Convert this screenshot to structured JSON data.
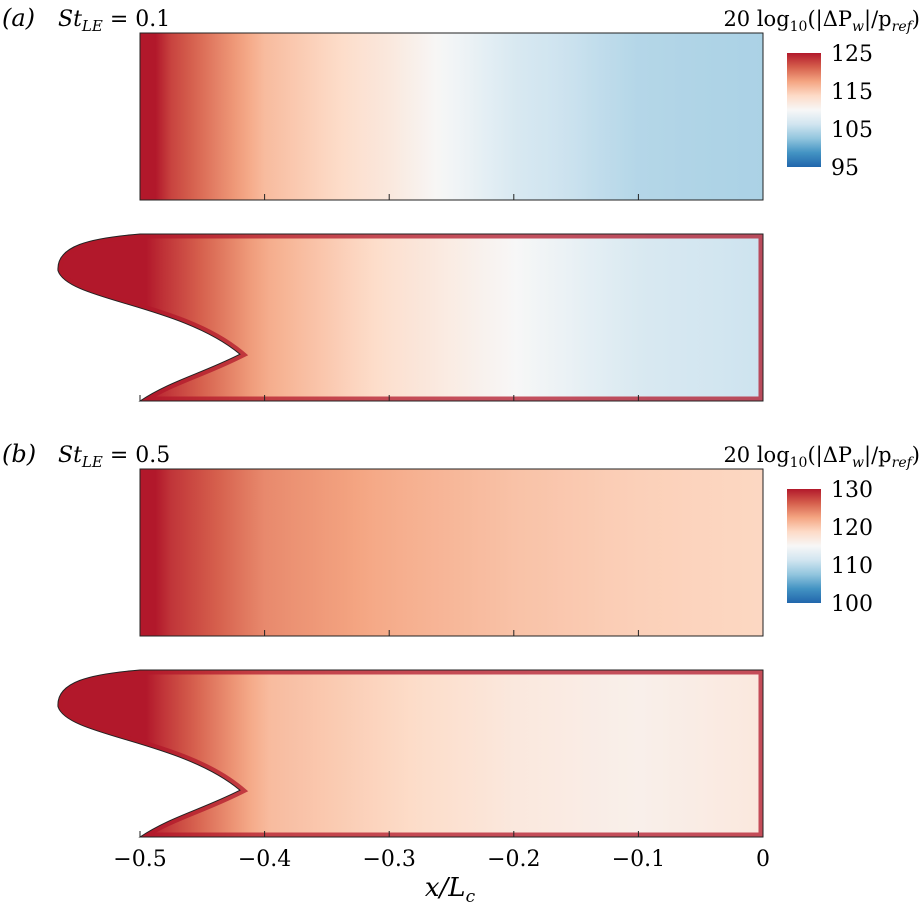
{
  "chart_data": [
    {
      "type": "heatmap",
      "panel_label": "(a)",
      "st_label_main": "St",
      "st_label_sub": "LE",
      "st_label_eq": " = 0.1",
      "colorbar_title": {
        "prefix": "20 log",
        "sub10": "10",
        "open": "(|ΔP",
        "sub_w": "w",
        "mid": "|/p",
        "sub_ref": "ref",
        "close": ")"
      },
      "colorbar_ticks": [
        "125",
        "115",
        "105",
        "95"
      ],
      "colorbar_range": [
        95,
        125
      ],
      "plots": [
        {
          "geometry": "flat",
          "x": [
            -0.5,
            -0.4,
            -0.3,
            -0.2,
            -0.1,
            0
          ],
          "db_profile": [
            125,
            116,
            112,
            107,
            104.5,
            104
          ]
        },
        {
          "geometry": "cavity",
          "x": [
            -0.5,
            -0.4,
            -0.3,
            -0.2,
            -0.1,
            0
          ],
          "db_profile": [
            125,
            117,
            113,
            110,
            107,
            106
          ]
        }
      ]
    },
    {
      "type": "heatmap",
      "panel_label": "(b)",
      "st_label_main": "St",
      "st_label_sub": "LE",
      "st_label_eq": " = 0.5",
      "colorbar_title": {
        "prefix": "20 log",
        "sub10": "10",
        "open": "(|ΔP",
        "sub_w": "w",
        "mid": "|/p",
        "sub_ref": "ref",
        "close": ")"
      },
      "colorbar_ticks": [
        "130",
        "120",
        "110",
        "100"
      ],
      "colorbar_range": [
        100,
        130
      ],
      "plots": [
        {
          "geometry": "flat",
          "x": [
            -0.5,
            -0.4,
            -0.3,
            -0.2,
            -0.1,
            0
          ],
          "db_profile": [
            130,
            124,
            122,
            120.5,
            119.5,
            119
          ]
        },
        {
          "geometry": "cavity",
          "x": [
            -0.5,
            -0.4,
            -0.3,
            -0.2,
            -0.1,
            0
          ],
          "db_profile": [
            130,
            121,
            119,
            117,
            116,
            117
          ]
        }
      ]
    }
  ],
  "x_axis": {
    "tick_labels": [
      "−0.5",
      "−0.4",
      "−0.3",
      "−0.2",
      "−0.1",
      "0"
    ],
    "tick_values": [
      -0.5,
      -0.4,
      -0.3,
      -0.2,
      -0.1,
      0
    ],
    "label_main": "x/L",
    "label_sub": "c"
  },
  "colors": {
    "cmap": [
      "#2166ac",
      "#4393c3",
      "#92c5de",
      "#d1e5f0",
      "#f7f7f7",
      "#fddbc7",
      "#f4a582",
      "#d6604d",
      "#b2182b"
    ]
  }
}
